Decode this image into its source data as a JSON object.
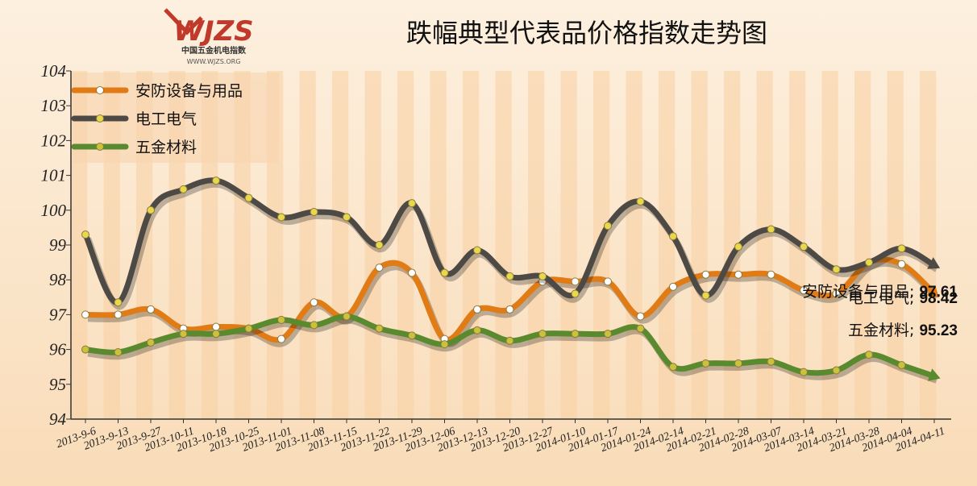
{
  "chart_data": {
    "type": "line",
    "title": "跌幅典型代表品价格指数走势图",
    "logo": {
      "mark": "WJZS",
      "name": "中国五金机电指数",
      "url": "WWW.WJZS.ORG"
    },
    "categories": [
      "2013-9-6",
      "2013-9-13",
      "2013-9-27",
      "2013-10-11",
      "2013-10-18",
      "2013-10-25",
      "2013-11-01",
      "2013-11-08",
      "2013-11-15",
      "2013-11-22",
      "2013-11-29",
      "2013-12-06",
      "2013-12-13",
      "2013-12-20",
      "2013-12-27",
      "2014-01-10",
      "2014-01-17",
      "2014-01-24",
      "2014-02-14",
      "2014-02-21",
      "2014-02-28",
      "2014-03-07",
      "2014-03-14",
      "2014-03-21",
      "2014-03-28",
      "2014-04-04",
      "2014-04-11"
    ],
    "series": [
      {
        "name": "安防设备与用品",
        "color": "#e07b16",
        "marker": "#ffffff",
        "values": [
          97.0,
          97.0,
          97.15,
          96.6,
          96.65,
          96.6,
          96.3,
          97.35,
          96.95,
          98.35,
          98.2,
          96.3,
          97.15,
          97.15,
          97.95,
          97.95,
          97.95,
          96.95,
          97.8,
          98.15,
          98.15,
          98.15,
          97.7,
          97.6,
          98.5,
          98.45,
          97.61
        ]
      },
      {
        "name": "电工电气",
        "color": "#4d4a45",
        "marker": "#e8d84a",
        "values": [
          99.3,
          97.35,
          100.0,
          100.6,
          100.85,
          100.35,
          99.8,
          99.95,
          99.8,
          99.0,
          100.2,
          98.2,
          98.85,
          98.1,
          98.1,
          97.6,
          99.55,
          100.25,
          99.25,
          97.55,
          98.95,
          99.45,
          98.95,
          98.3,
          98.5,
          98.9,
          98.42
        ]
      },
      {
        "name": "五金材料",
        "color": "#5a8a2e",
        "marker": "#c9c23a",
        "values": [
          96.0,
          95.92,
          96.2,
          96.45,
          96.45,
          96.6,
          96.85,
          96.7,
          96.95,
          96.6,
          96.4,
          96.15,
          96.55,
          96.25,
          96.45,
          96.45,
          96.45,
          96.6,
          95.5,
          95.6,
          95.6,
          95.65,
          95.35,
          95.4,
          95.85,
          95.55,
          95.23
        ]
      }
    ],
    "label_separator": ";",
    "ylim": [
      94,
      104
    ],
    "yticks": [
      94,
      95,
      96,
      97,
      98,
      99,
      100,
      101,
      102,
      103,
      104
    ],
    "legend": "top-left"
  }
}
